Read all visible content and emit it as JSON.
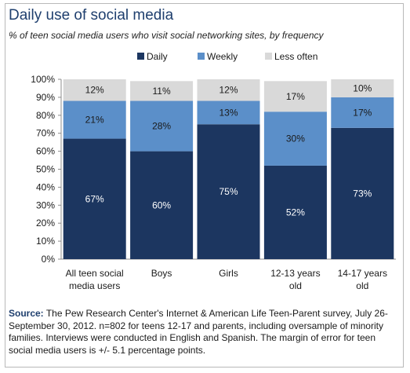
{
  "title": "Daily use of social media",
  "subtitle": "% of teen social media users who visit social networking sites, by frequency",
  "colors": {
    "daily": "#1c3660",
    "weekly": "#5b8fc9",
    "less_often": "#d9d9d9",
    "daily_label": "#ffffff",
    "weekly_label": "#1a1a1a",
    "less_label": "#1a1a1a"
  },
  "source": {
    "label": "Source:",
    "text": "The Pew Research Center's Internet & American Life Teen-Parent survey, July 26-September 30, 2012. n=802 for teens 12-17 and parents, including oversample of minority families. Interviews were conducted in English and Spanish. The margin of error for teen social media users is +/- 5.1 percentage points."
  },
  "chart_data": {
    "type": "bar",
    "stacked": true,
    "legend_position": "top",
    "categories": [
      [
        "All teen social",
        "media users"
      ],
      [
        "Boys"
      ],
      [
        "Girls"
      ],
      [
        "12-13 years",
        "old"
      ],
      [
        "14-17 years",
        "old"
      ]
    ],
    "series": [
      {
        "name": "Daily",
        "values": [
          67,
          60,
          75,
          52,
          73
        ],
        "labels": [
          "67%",
          "60%",
          "75%",
          "52%",
          "73%"
        ]
      },
      {
        "name": "Weekly",
        "values": [
          21,
          28,
          13,
          30,
          17
        ],
        "labels": [
          "21%",
          "28%",
          "13%",
          "30%",
          "17%"
        ]
      },
      {
        "name": "Less often",
        "values": [
          12,
          11,
          12,
          17,
          10
        ],
        "labels": [
          "12%",
          "11%",
          "12%",
          "17%",
          "10%"
        ]
      }
    ],
    "ylim": [
      0,
      100
    ],
    "yticks": [
      "0%",
      "10%",
      "20%",
      "30%",
      "40%",
      "50%",
      "60%",
      "70%",
      "80%",
      "90%",
      "100%"
    ],
    "grid": false
  }
}
